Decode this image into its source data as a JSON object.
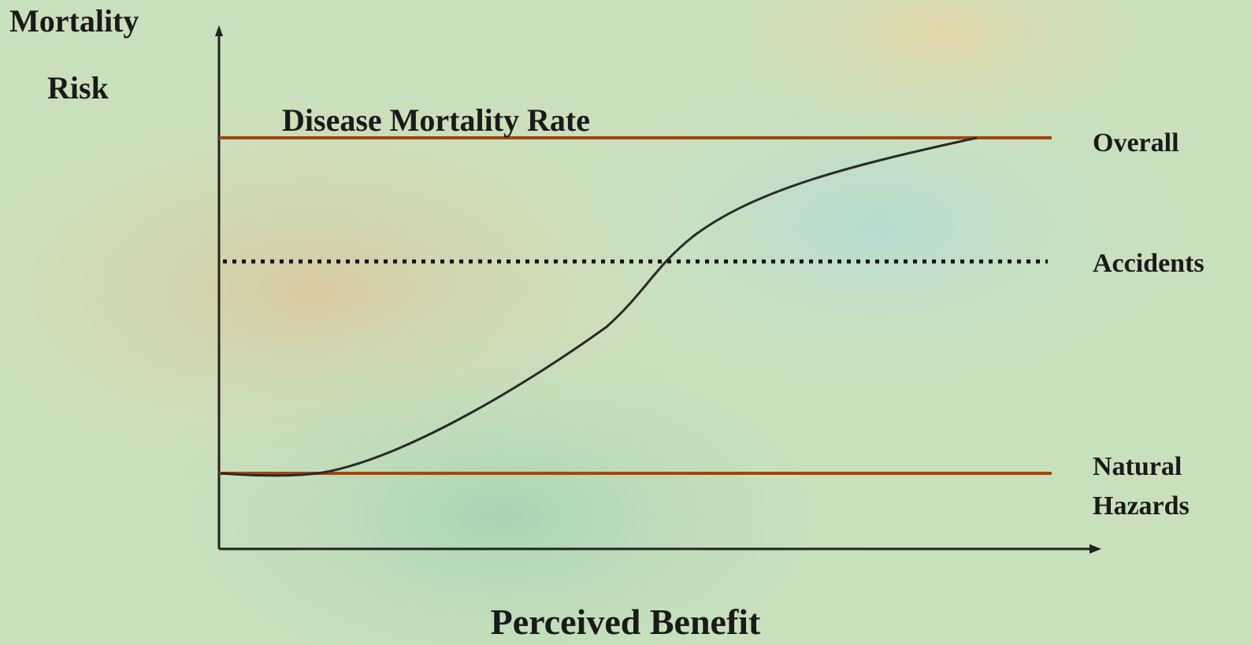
{
  "axes": {
    "y_label": [
      "Mortality",
      "Risk"
    ],
    "x_label": "Perceived Benefit"
  },
  "lines": {
    "top_title": "Disease Mortality Rate",
    "overall": "Overall",
    "accidents": "Accidents",
    "natural_hazards": [
      "Natural",
      "Hazards"
    ]
  }
}
